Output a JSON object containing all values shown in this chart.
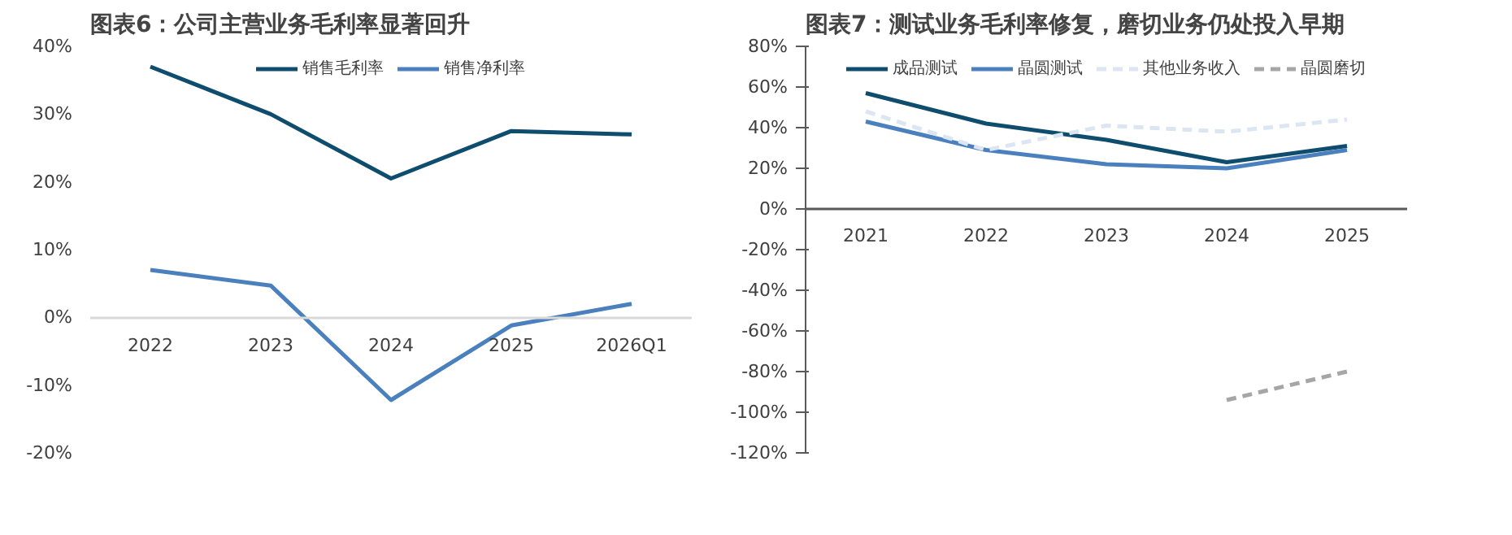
{
  "chart_data": [
    {
      "type": "line",
      "title": "图表6：公司主营业务毛利率显著回升",
      "categories": [
        "2022",
        "2023",
        "2024",
        "2025",
        "2026Q1"
      ],
      "series": [
        {
          "name": "销售毛利率",
          "color": "#0e4d6e",
          "values": [
            37,
            30,
            20.5,
            27.5,
            27
          ]
        },
        {
          "name": "销售净利率",
          "color": "#4a80bd",
          "values": [
            7,
            4.7,
            -12.2,
            -1.2,
            2
          ]
        }
      ],
      "ylim": [
        -20,
        40
      ],
      "yticks": [
        {
          "value": -20,
          "label": "-20%"
        },
        {
          "value": -10,
          "label": "-10%"
        },
        {
          "value": 0,
          "label": "0%"
        },
        {
          "value": 10,
          "label": "10%"
        },
        {
          "value": 20,
          "label": "20%"
        },
        {
          "value": 30,
          "label": "30%"
        },
        {
          "value": 40,
          "label": "40%"
        }
      ],
      "grid": false,
      "legend": "top",
      "line_style": "solid"
    },
    {
      "type": "line",
      "title": "图表7：测试业务毛利率修复，磨切业务仍处投入早期",
      "categories": [
        "2021",
        "2022",
        "2023",
        "2024",
        "2025"
      ],
      "series": [
        {
          "name": "成品测试",
          "color": "#0e4d6e",
          "values": [
            57,
            42,
            34,
            23,
            31
          ]
        },
        {
          "name": "晶圆测试",
          "color": "#4a80bd",
          "values": [
            43,
            29,
            22,
            20,
            29
          ]
        },
        {
          "name": "其他业务收入",
          "color": "#dce6f2",
          "values": [
            48,
            29,
            41,
            38,
            44
          ],
          "line_style": "dashed"
        },
        {
          "name": "晶圆磨切",
          "color": "#a6a6a6",
          "values": [
            null,
            null,
            null,
            -94,
            -80
          ],
          "line_style": "dashed"
        }
      ],
      "ylim": [
        -120,
        80
      ],
      "yticks": [
        {
          "value": -120,
          "label": "-120%"
        },
        {
          "value": -100,
          "label": "-100%"
        },
        {
          "value": -80,
          "label": "-80%"
        },
        {
          "value": -60,
          "label": "-60%"
        },
        {
          "value": -40,
          "label": "-40%"
        },
        {
          "value": -20,
          "label": "-20%"
        },
        {
          "value": 0,
          "label": "0%"
        },
        {
          "value": 20,
          "label": "20%"
        },
        {
          "value": 40,
          "label": "40%"
        },
        {
          "value": 60,
          "label": "60%"
        },
        {
          "value": 80,
          "label": "80%"
        }
      ],
      "grid": false,
      "legend": "top",
      "line_style": "solid"
    }
  ]
}
